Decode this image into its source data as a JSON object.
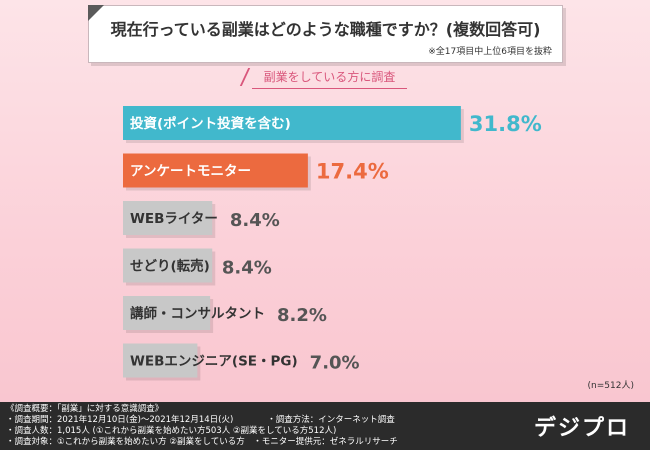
{
  "header": {
    "title": "現在行っている副業はどのような職種ですか？(複数回答可)",
    "note": "※全17項目中上位6項目を抜粋",
    "subtitle": "副業をしている方に調査"
  },
  "chart_data": {
    "type": "bar",
    "orientation": "horizontal",
    "categories": [
      "投資(ポイント投資を含む)",
      "アンケートモニター",
      "WEBライター",
      "せどり(転売)",
      "講師・コンサルタント",
      "WEBエンジニア(SE・PG)"
    ],
    "values": [
      31.8,
      17.4,
      8.4,
      8.4,
      8.2,
      7.0
    ],
    "value_labels": [
      "31.8%",
      "17.4%",
      "8.4%",
      "8.4%",
      "8.2%",
      "7.0%"
    ],
    "unit": "%",
    "bar_colors": [
      "#41b8cc",
      "#ec6a3f",
      "#c8c8c8",
      "#c8c8c8",
      "#c8c8c8",
      "#c8c8c8"
    ],
    "label_colors": [
      "#ffffff",
      "#ffffff",
      "#333333",
      "#333333",
      "#333333",
      "#333333"
    ],
    "value_colors": [
      "#41b8cc",
      "#ec6a3f",
      "#555555",
      "#555555",
      "#555555",
      "#555555"
    ],
    "xlim": [
      0,
      32
    ],
    "sample_note": "(n=512人)"
  },
  "footer": {
    "lines": [
      "《調査概要：「副業」に対する意識調査》",
      "・調査期間：2021年12月10日(金)～2021年12月14日(火)　　　　・調査方法：インターネット調査",
      "・調査人数：1,015人 (①これから副業を始めたい方503人 ②副業をしている方512人)",
      "・調査対象：①これから副業を始めたい方 ②副業をしている方　・モニター提供元：ゼネラルリサーチ"
    ],
    "logo": "デジプロ"
  }
}
